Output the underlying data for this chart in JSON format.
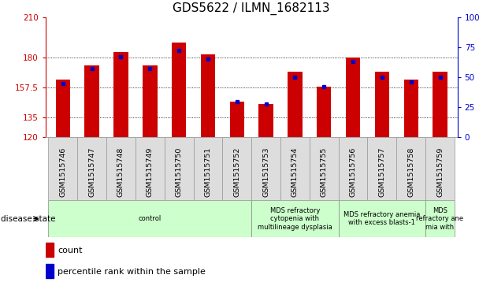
{
  "title": "GDS5622 / ILMN_1682113",
  "samples": [
    "GSM1515746",
    "GSM1515747",
    "GSM1515748",
    "GSM1515749",
    "GSM1515750",
    "GSM1515751",
    "GSM1515752",
    "GSM1515753",
    "GSM1515754",
    "GSM1515755",
    "GSM1515756",
    "GSM1515757",
    "GSM1515758",
    "GSM1515759"
  ],
  "counts": [
    163,
    174,
    184,
    174,
    191,
    182,
    147,
    145,
    169,
    158,
    180,
    169,
    163,
    169
  ],
  "percentile_ranks": [
    45,
    57,
    67,
    57,
    72,
    65,
    30,
    28,
    50,
    42,
    63,
    50,
    46,
    50
  ],
  "ylim": [
    120,
    210
  ],
  "yticks": [
    120,
    135,
    157.5,
    180,
    210
  ],
  "ytick_labels": [
    "120",
    "135",
    "157.5",
    "180",
    "210"
  ],
  "right_yticks": [
    0,
    25,
    50,
    75,
    100
  ],
  "right_ytick_labels": [
    "0",
    "25",
    "50",
    "75",
    "100%"
  ],
  "bar_color": "#cc0000",
  "dot_color": "#0000cc",
  "tick_color_left": "#cc0000",
  "tick_color_right": "#0000cc",
  "disease_states": [
    {
      "label": "control",
      "start": 0,
      "end": 7
    },
    {
      "label": "MDS refractory\ncytopenia with\nmultilineage dysplasia",
      "start": 7,
      "end": 10
    },
    {
      "label": "MDS refractory anemia\nwith excess blasts-1",
      "start": 10,
      "end": 13
    },
    {
      "label": "MDS\nrefractory ane\nmia with",
      "start": 13,
      "end": 14
    }
  ],
  "legend_count": "count",
  "legend_percentile": "percentile rank within the sample",
  "bar_width": 0.5,
  "title_fontsize": 11,
  "tick_fontsize": 7.5
}
